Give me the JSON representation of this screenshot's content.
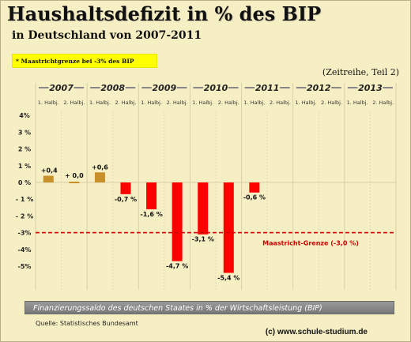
{
  "header": {
    "title": "Haushaltsdefizit in % des BIP",
    "subtitle": "in Deutschland von 2007-2011",
    "note": "* Maastrichtgrenze bei -3% des BIP",
    "series_note": "(Zeitreihe, Teil 2)"
  },
  "footer": {
    "caption": "Finanzierungssaldo des deutschen Staates in % der Wirtschaftsleistung (BIP)",
    "source": "Quelle: Statistisches Bundesamt",
    "copyright": "(c) www.schule-studium.de"
  },
  "colors": {
    "background": "#f7efc4",
    "surplus_bar": "#c9902a",
    "deficit_bar": "#ff0000",
    "maastricht_line": "#cc0000"
  },
  "chart_data": {
    "type": "bar",
    "years": [
      "2007",
      "2008",
      "2009",
      "2010",
      "2011",
      "2012",
      "2013"
    ],
    "categories": [
      "1. Halbj.",
      "2. Halbj.",
      "1. Halbj.",
      "2. Halbj.",
      "1. Halbj.",
      "2. Halbj.",
      "1. Halbj.",
      "2. Halbj.",
      "1. Halbj.",
      "2. Halbj.",
      "1. Halbj.",
      "2. Halbj.",
      "1. Halbj.",
      "2. Halbj."
    ],
    "values": [
      0.4,
      0.0,
      0.6,
      -0.7,
      -1.6,
      -4.7,
      -3.1,
      -5.4,
      -0.6,
      null,
      null,
      null,
      null,
      null
    ],
    "data_labels": [
      "+0,4",
      "+ 0,0",
      "+0,6",
      "-0,7 %",
      "-1,6 %",
      "-4,7 %",
      "-3,1 %",
      "-5,4 %",
      "-0,6 %",
      "",
      "",
      "",
      "",
      ""
    ],
    "yticks": [
      4,
      3,
      2,
      1,
      0,
      -1,
      -2,
      -3,
      -4,
      -5
    ],
    "ytick_labels": [
      "4%",
      "3 %",
      "2 %",
      "1 %",
      "0 %",
      "- 1 %",
      "- 2 %",
      "-3%",
      "-4%",
      "-5%"
    ],
    "ylim": [
      -6,
      4
    ],
    "reference_line": {
      "value": -3.0,
      "label": "Maastricht-Grenze (-3,0 %)"
    },
    "grid": "vertical"
  }
}
